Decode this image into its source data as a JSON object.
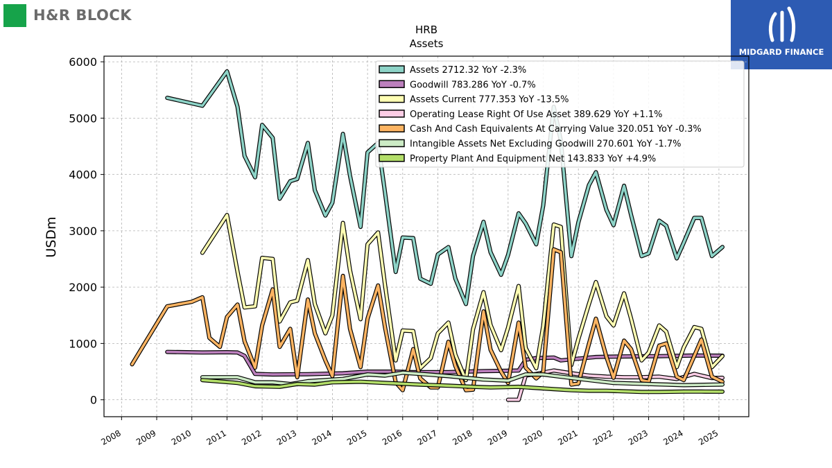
{
  "brand": {
    "left_logo_text": "H&R BLOCK",
    "left_logo_color": "#16a34a",
    "right_logo_text": "MIDGARD FINANCE",
    "right_logo_color": "#2d5bb3"
  },
  "chart_data": {
    "type": "line",
    "title": "HRB",
    "subtitle": "Assets",
    "ylabel": "USDm",
    "xlabel": "",
    "xlim": [
      2007.5,
      2025.85
    ],
    "ylim": [
      -300,
      6100
    ],
    "yticks": [
      0,
      1000,
      2000,
      3000,
      4000,
      5000,
      6000
    ],
    "xticks": [
      "2008",
      "2009",
      "2010",
      "2011",
      "2012",
      "2013",
      "2014",
      "2015",
      "2016",
      "2017",
      "2018",
      "2019",
      "2020",
      "2021",
      "2022",
      "2023",
      "2024",
      "2025"
    ],
    "grid": true,
    "legend_position": "top-right",
    "series": [
      {
        "name": "Assets",
        "legend": "Assets  2712.32 YoY -2.3%",
        "color": "#8dd3c7",
        "points": [
          [
            2009.3,
            5360
          ],
          [
            2010.3,
            5220
          ],
          [
            2011.0,
            5830
          ],
          [
            2011.3,
            5200
          ],
          [
            2011.5,
            4330
          ],
          [
            2011.8,
            3950
          ],
          [
            2012.0,
            4880
          ],
          [
            2012.3,
            4650
          ],
          [
            2012.5,
            3570
          ],
          [
            2012.8,
            3880
          ],
          [
            2013.0,
            3920
          ],
          [
            2013.3,
            4560
          ],
          [
            2013.5,
            3720
          ],
          [
            2013.8,
            3270
          ],
          [
            2014.0,
            3500
          ],
          [
            2014.3,
            4720
          ],
          [
            2014.5,
            3980
          ],
          [
            2014.8,
            3070
          ],
          [
            2015.0,
            4390
          ],
          [
            2015.3,
            4560
          ],
          [
            2015.5,
            3670
          ],
          [
            2015.8,
            2270
          ],
          [
            2016.0,
            2880
          ],
          [
            2016.3,
            2870
          ],
          [
            2016.5,
            2150
          ],
          [
            2016.8,
            2060
          ],
          [
            2017.0,
            2580
          ],
          [
            2017.3,
            2710
          ],
          [
            2017.5,
            2150
          ],
          [
            2017.8,
            1700
          ],
          [
            2018.0,
            2550
          ],
          [
            2018.3,
            3160
          ],
          [
            2018.5,
            2620
          ],
          [
            2018.8,
            2220
          ],
          [
            2019.0,
            2570
          ],
          [
            2019.3,
            3310
          ],
          [
            2019.5,
            3130
          ],
          [
            2019.8,
            2760
          ],
          [
            2020.0,
            3450
          ],
          [
            2020.3,
            5200
          ],
          [
            2020.5,
            4600
          ],
          [
            2020.8,
            2550
          ],
          [
            2021.0,
            3150
          ],
          [
            2021.3,
            3810
          ],
          [
            2021.5,
            4040
          ],
          [
            2021.8,
            3370
          ],
          [
            2022.0,
            3100
          ],
          [
            2022.3,
            3800
          ],
          [
            2022.5,
            3280
          ],
          [
            2022.8,
            2550
          ],
          [
            2023.0,
            2600
          ],
          [
            2023.3,
            3180
          ],
          [
            2023.5,
            3090
          ],
          [
            2023.8,
            2510
          ],
          [
            2024.0,
            2790
          ],
          [
            2024.3,
            3230
          ],
          [
            2024.5,
            3230
          ],
          [
            2024.8,
            2550
          ],
          [
            2025.1,
            2712
          ]
        ]
      },
      {
        "name": "Goodwill",
        "legend": "Goodwill  783.286 YoY -0.7%",
        "color": "#bc80bd",
        "points": [
          [
            2009.3,
            850
          ],
          [
            2010.3,
            840
          ],
          [
            2011.0,
            845
          ],
          [
            2011.3,
            840
          ],
          [
            2011.5,
            780
          ],
          [
            2011.8,
            460
          ],
          [
            2012.3,
            450
          ],
          [
            2013.3,
            455
          ],
          [
            2014.3,
            470
          ],
          [
            2015.0,
            500
          ],
          [
            2015.8,
            500
          ],
          [
            2016.3,
            490
          ],
          [
            2017.3,
            490
          ],
          [
            2018.3,
            510
          ],
          [
            2019.0,
            515
          ],
          [
            2019.3,
            520
          ],
          [
            2019.5,
            710
          ],
          [
            2019.8,
            740
          ],
          [
            2020.3,
            750
          ],
          [
            2020.5,
            700
          ],
          [
            2021.0,
            730
          ],
          [
            2021.5,
            760
          ],
          [
            2022.3,
            770
          ],
          [
            2023.3,
            775
          ],
          [
            2024.3,
            785
          ],
          [
            2025.1,
            783
          ]
        ]
      },
      {
        "name": "Assets Current",
        "legend": "Assets Current  777.353 YoY -13.5%",
        "color": "#ffffb3",
        "points": [
          [
            2010.3,
            2610
          ],
          [
            2011.0,
            3280
          ],
          [
            2011.3,
            2270
          ],
          [
            2011.5,
            1640
          ],
          [
            2011.8,
            1660
          ],
          [
            2012.0,
            2520
          ],
          [
            2012.3,
            2500
          ],
          [
            2012.5,
            1390
          ],
          [
            2012.8,
            1730
          ],
          [
            2013.0,
            1760
          ],
          [
            2013.3,
            2480
          ],
          [
            2013.5,
            1700
          ],
          [
            2013.8,
            1180
          ],
          [
            2014.0,
            1500
          ],
          [
            2014.3,
            3140
          ],
          [
            2014.5,
            2300
          ],
          [
            2014.8,
            1430
          ],
          [
            2015.0,
            2760
          ],
          [
            2015.3,
            2970
          ],
          [
            2015.5,
            2030
          ],
          [
            2015.8,
            700
          ],
          [
            2016.0,
            1230
          ],
          [
            2016.3,
            1220
          ],
          [
            2016.5,
            560
          ],
          [
            2016.8,
            740
          ],
          [
            2017.0,
            1180
          ],
          [
            2017.3,
            1370
          ],
          [
            2017.5,
            800
          ],
          [
            2017.8,
            350
          ],
          [
            2018.0,
            1250
          ],
          [
            2018.3,
            1910
          ],
          [
            2018.5,
            1330
          ],
          [
            2018.8,
            880
          ],
          [
            2019.0,
            1280
          ],
          [
            2019.3,
            2020
          ],
          [
            2019.5,
            920
          ],
          [
            2019.8,
            560
          ],
          [
            2020.0,
            1310
          ],
          [
            2020.3,
            3110
          ],
          [
            2020.5,
            3070
          ],
          [
            2020.8,
            620
          ],
          [
            2021.0,
            1080
          ],
          [
            2021.3,
            1700
          ],
          [
            2021.5,
            2090
          ],
          [
            2021.8,
            1480
          ],
          [
            2022.0,
            1320
          ],
          [
            2022.3,
            1890
          ],
          [
            2022.5,
            1440
          ],
          [
            2022.8,
            700
          ],
          [
            2023.0,
            840
          ],
          [
            2023.3,
            1320
          ],
          [
            2023.5,
            1210
          ],
          [
            2023.8,
            580
          ],
          [
            2024.0,
            930
          ],
          [
            2024.3,
            1290
          ],
          [
            2024.5,
            1260
          ],
          [
            2024.8,
            580
          ],
          [
            2025.1,
            777
          ]
        ]
      },
      {
        "name": "Operating Lease Right Of Use Asset",
        "legend": "Operating Lease Right Of Use Asset  389.629 YoY +1.1%",
        "color": "#fccde5",
        "points": [
          [
            2019.0,
            0
          ],
          [
            2019.3,
            0
          ],
          [
            2019.5,
            430
          ],
          [
            2019.8,
            460
          ],
          [
            2020.3,
            520
          ],
          [
            2020.8,
            470
          ],
          [
            2021.3,
            430
          ],
          [
            2021.8,
            410
          ],
          [
            2022.3,
            400
          ],
          [
            2022.8,
            400
          ],
          [
            2023.3,
            410
          ],
          [
            2023.8,
            370
          ],
          [
            2024.3,
            460
          ],
          [
            2024.8,
            385
          ],
          [
            2025.1,
            390
          ]
        ]
      },
      {
        "name": "Cash And Cash Equivalents At Carrying Value",
        "legend": "Cash And Cash Equivalents At Carrying Value  320.051 YoY -0.3%",
        "color": "#fdb462",
        "points": [
          [
            2008.3,
            630
          ],
          [
            2009.3,
            1660
          ],
          [
            2010.0,
            1740
          ],
          [
            2010.3,
            1820
          ],
          [
            2010.5,
            1100
          ],
          [
            2010.8,
            940
          ],
          [
            2011.0,
            1470
          ],
          [
            2011.3,
            1690
          ],
          [
            2011.5,
            1040
          ],
          [
            2011.8,
            570
          ],
          [
            2012.0,
            1320
          ],
          [
            2012.3,
            1960
          ],
          [
            2012.5,
            940
          ],
          [
            2012.8,
            1260
          ],
          [
            2013.0,
            400
          ],
          [
            2013.3,
            1780
          ],
          [
            2013.5,
            1180
          ],
          [
            2013.8,
            700
          ],
          [
            2014.0,
            420
          ],
          [
            2014.3,
            2200
          ],
          [
            2014.5,
            1260
          ],
          [
            2014.8,
            580
          ],
          [
            2015.0,
            1440
          ],
          [
            2015.3,
            2030
          ],
          [
            2015.5,
            1280
          ],
          [
            2015.8,
            310
          ],
          [
            2016.0,
            170
          ],
          [
            2016.3,
            900
          ],
          [
            2016.5,
            380
          ],
          [
            2016.8,
            220
          ],
          [
            2017.0,
            220
          ],
          [
            2017.3,
            1030
          ],
          [
            2017.5,
            600
          ],
          [
            2017.8,
            170
          ],
          [
            2018.0,
            180
          ],
          [
            2018.3,
            1570
          ],
          [
            2018.5,
            890
          ],
          [
            2018.8,
            500
          ],
          [
            2019.0,
            300
          ],
          [
            2019.3,
            1370
          ],
          [
            2019.5,
            570
          ],
          [
            2019.8,
            380
          ],
          [
            2020.0,
            490
          ],
          [
            2020.3,
            2670
          ],
          [
            2020.5,
            2620
          ],
          [
            2020.8,
            270
          ],
          [
            2021.0,
            290
          ],
          [
            2021.3,
            990
          ],
          [
            2021.5,
            1440
          ],
          [
            2021.8,
            760
          ],
          [
            2022.0,
            390
          ],
          [
            2022.3,
            1050
          ],
          [
            2022.5,
            900
          ],
          [
            2022.8,
            350
          ],
          [
            2023.0,
            320
          ],
          [
            2023.3,
            960
          ],
          [
            2023.5,
            1000
          ],
          [
            2023.8,
            410
          ],
          [
            2024.0,
            350
          ],
          [
            2024.3,
            780
          ],
          [
            2024.5,
            1070
          ],
          [
            2024.8,
            410
          ],
          [
            2025.1,
            320
          ]
        ]
      },
      {
        "name": "Intangible Assets Net Excluding Goodwill",
        "legend": "Intangible Assets Net Excluding Goodwill  270.601 YoY -1.7%",
        "color": "#ccebc5",
        "points": [
          [
            2010.3,
            400
          ],
          [
            2011.3,
            400
          ],
          [
            2011.8,
            310
          ],
          [
            2012.3,
            310
          ],
          [
            2012.8,
            280
          ],
          [
            2013.3,
            330
          ],
          [
            2014.3,
            370
          ],
          [
            2015.0,
            450
          ],
          [
            2015.5,
            430
          ],
          [
            2016.0,
            480
          ],
          [
            2016.5,
            460
          ],
          [
            2017.3,
            420
          ],
          [
            2018.3,
            360
          ],
          [
            2019.0,
            340
          ],
          [
            2019.5,
            450
          ],
          [
            2020.0,
            450
          ],
          [
            2020.5,
            410
          ],
          [
            2021.3,
            350
          ],
          [
            2022.0,
            300
          ],
          [
            2023.0,
            280
          ],
          [
            2024.0,
            260
          ],
          [
            2025.1,
            271
          ]
        ]
      },
      {
        "name": "Property Plant And Equipment Net",
        "legend": "Property Plant And Equipment Net  143.833 YoY +4.9%",
        "color": "#b3de69",
        "points": [
          [
            2010.3,
            350
          ],
          [
            2011.3,
            300
          ],
          [
            2011.8,
            240
          ],
          [
            2012.5,
            230
          ],
          [
            2013.0,
            280
          ],
          [
            2013.5,
            270
          ],
          [
            2014.0,
            310
          ],
          [
            2014.8,
            320
          ],
          [
            2015.5,
            300
          ],
          [
            2016.5,
            270
          ],
          [
            2017.3,
            250
          ],
          [
            2018.0,
            230
          ],
          [
            2018.5,
            220
          ],
          [
            2019.3,
            230
          ],
          [
            2019.8,
            210
          ],
          [
            2020.3,
            190
          ],
          [
            2020.8,
            170
          ],
          [
            2021.3,
            160
          ],
          [
            2021.8,
            160
          ],
          [
            2022.3,
            150
          ],
          [
            2022.8,
            140
          ],
          [
            2023.3,
            140
          ],
          [
            2024.0,
            145
          ],
          [
            2024.5,
            145
          ],
          [
            2025.1,
            144
          ]
        ]
      }
    ]
  }
}
